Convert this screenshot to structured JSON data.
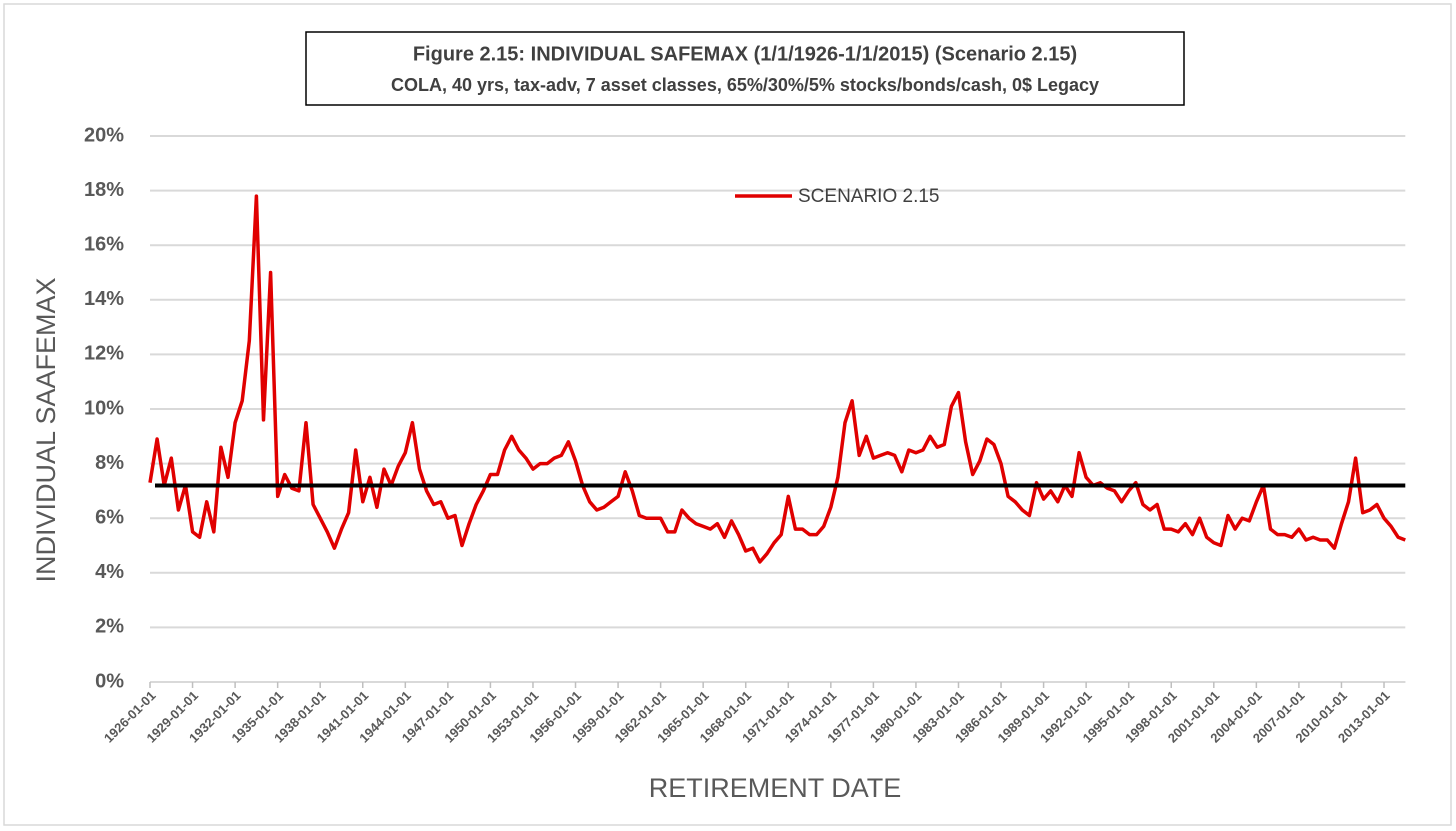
{
  "chart_data": {
    "type": "line",
    "title": "Figure 2.15: INDIVIDUAL SAFEMAX (1/1/1926-1/1/2015) (Scenario 2.15)",
    "subtitle": "COLA, 40 yrs, tax-adv, 7 asset classes, 65%/30%/5% stocks/bonds/cash, 0$ Legacy",
    "x_label": "RETIREMENT DATE",
    "y_label": "INDIVIDUAL SAAFEMAX",
    "categories": [
      "1926-01-01",
      null,
      null,
      null,
      null,
      null,
      "1929-01-01",
      null,
      null,
      null,
      null,
      null,
      "1932-01-01",
      null,
      null,
      null,
      null,
      null,
      "1935-01-01",
      null,
      null,
      null,
      null,
      null,
      "1938-01-01",
      null,
      null,
      null,
      null,
      null,
      "1941-01-01",
      null,
      null,
      null,
      null,
      null,
      "1944-01-01",
      null,
      null,
      null,
      null,
      null,
      "1947-01-01",
      null,
      null,
      null,
      null,
      null,
      "1950-01-01",
      null,
      null,
      null,
      null,
      null,
      "1953-01-01",
      null,
      null,
      null,
      null,
      null,
      "1956-01-01",
      null,
      null,
      null,
      null,
      null,
      "1959-01-01",
      null,
      null,
      null,
      null,
      null,
      "1962-01-01",
      null,
      null,
      null,
      null,
      null,
      "1965-01-01",
      null,
      null,
      null,
      null,
      null,
      "1968-01-01",
      null,
      null,
      null,
      null,
      null,
      "1971-01-01",
      null,
      null,
      null,
      null,
      null,
      "1974-01-01",
      null,
      null,
      null,
      null,
      null,
      "1977-01-01",
      null,
      null,
      null,
      null,
      null,
      "1980-01-01",
      null,
      null,
      null,
      null,
      null,
      "1983-01-01",
      null,
      null,
      null,
      null,
      null,
      "1986-01-01",
      null,
      null,
      null,
      null,
      null,
      "1989-01-01",
      null,
      null,
      null,
      null,
      null,
      "1992-01-01",
      null,
      null,
      null,
      null,
      null,
      "1995-01-01",
      null,
      null,
      null,
      null,
      null,
      "1998-01-01",
      null,
      null,
      null,
      null,
      null,
      "2001-01-01",
      null,
      null,
      null,
      null,
      null,
      "2004-01-01",
      null,
      null,
      null,
      null,
      null,
      "2007-01-01",
      null,
      null,
      null,
      null,
      null,
      "2010-01-01",
      null,
      null,
      null,
      null,
      null,
      "2013-01-01",
      null,
      null,
      null
    ],
    "series": [
      {
        "name": "SCENARIO 2.15",
        "color": "#e00000",
        "values": [
          7.3,
          8.9,
          7.2,
          8.2,
          6.3,
          7.2,
          5.5,
          5.3,
          6.6,
          5.5,
          8.6,
          7.5,
          9.5,
          10.3,
          12.5,
          17.8,
          9.6,
          15.0,
          6.8,
          7.6,
          7.1,
          7.0,
          9.5,
          6.5,
          6.0,
          5.5,
          4.9,
          5.6,
          6.2,
          8.5,
          6.6,
          7.5,
          6.4,
          7.8,
          7.2,
          7.9,
          8.4,
          9.5,
          7.8,
          7.0,
          6.5,
          6.6,
          6.0,
          6.1,
          5.0,
          5.8,
          6.5,
          7.0,
          7.6,
          7.6,
          8.5,
          9.0,
          8.5,
          8.2,
          7.8,
          8.0,
          8.0,
          8.2,
          8.3,
          8.8,
          8.1,
          7.2,
          6.6,
          6.3,
          6.4,
          6.6,
          6.8,
          7.7,
          7.0,
          6.1,
          6.0,
          6.0,
          6.0,
          5.5,
          5.5,
          6.3,
          6.0,
          5.8,
          5.7,
          5.6,
          5.8,
          5.3,
          5.9,
          5.4,
          4.8,
          4.9,
          4.4,
          4.7,
          5.1,
          5.4,
          6.8,
          5.6,
          5.6,
          5.4,
          5.4,
          5.7,
          6.4,
          7.5,
          9.5,
          10.3,
          8.3,
          9.0,
          8.2,
          8.3,
          8.4,
          8.3,
          7.7,
          8.5,
          8.4,
          8.5,
          9.0,
          8.6,
          8.7,
          10.1,
          10.6,
          8.8,
          7.6,
          8.1,
          8.9,
          8.7,
          8.0,
          6.8,
          6.6,
          6.3,
          6.1,
          7.3,
          6.7,
          7.0,
          6.6,
          7.2,
          6.8,
          8.4,
          7.5,
          7.2,
          7.3,
          7.1,
          7.0,
          6.6,
          7.0,
          7.3,
          6.5,
          6.3,
          6.5,
          5.6,
          5.6,
          5.5,
          5.8,
          5.4,
          6.0,
          5.3,
          5.1,
          5.0,
          6.1,
          5.6,
          6.0,
          5.9,
          6.6,
          7.2,
          5.6,
          5.4,
          5.4,
          5.3,
          5.6,
          5.2,
          5.3,
          5.2,
          5.2,
          4.9,
          5.8,
          6.6,
          8.2,
          6.2,
          6.3,
          6.5,
          6.0,
          5.7,
          5.3,
          5.2
        ]
      }
    ],
    "reference_line": {
      "value": 7.2,
      "color": "#000000"
    },
    "ylim": [
      0,
      20
    ],
    "yticks": [
      {
        "value": 0,
        "label": "0%"
      },
      {
        "value": 2,
        "label": "2%"
      },
      {
        "value": 4,
        "label": "4%"
      },
      {
        "value": 6,
        "label": "6%"
      },
      {
        "value": 8,
        "label": "8%"
      },
      {
        "value": 10,
        "label": "10%"
      },
      {
        "value": 12,
        "label": "12%"
      },
      {
        "value": 14,
        "label": "14%"
      },
      {
        "value": 16,
        "label": "16%"
      },
      {
        "value": 18,
        "label": "18%"
      },
      {
        "value": 20,
        "label": "20%"
      }
    ],
    "grid": true
  }
}
